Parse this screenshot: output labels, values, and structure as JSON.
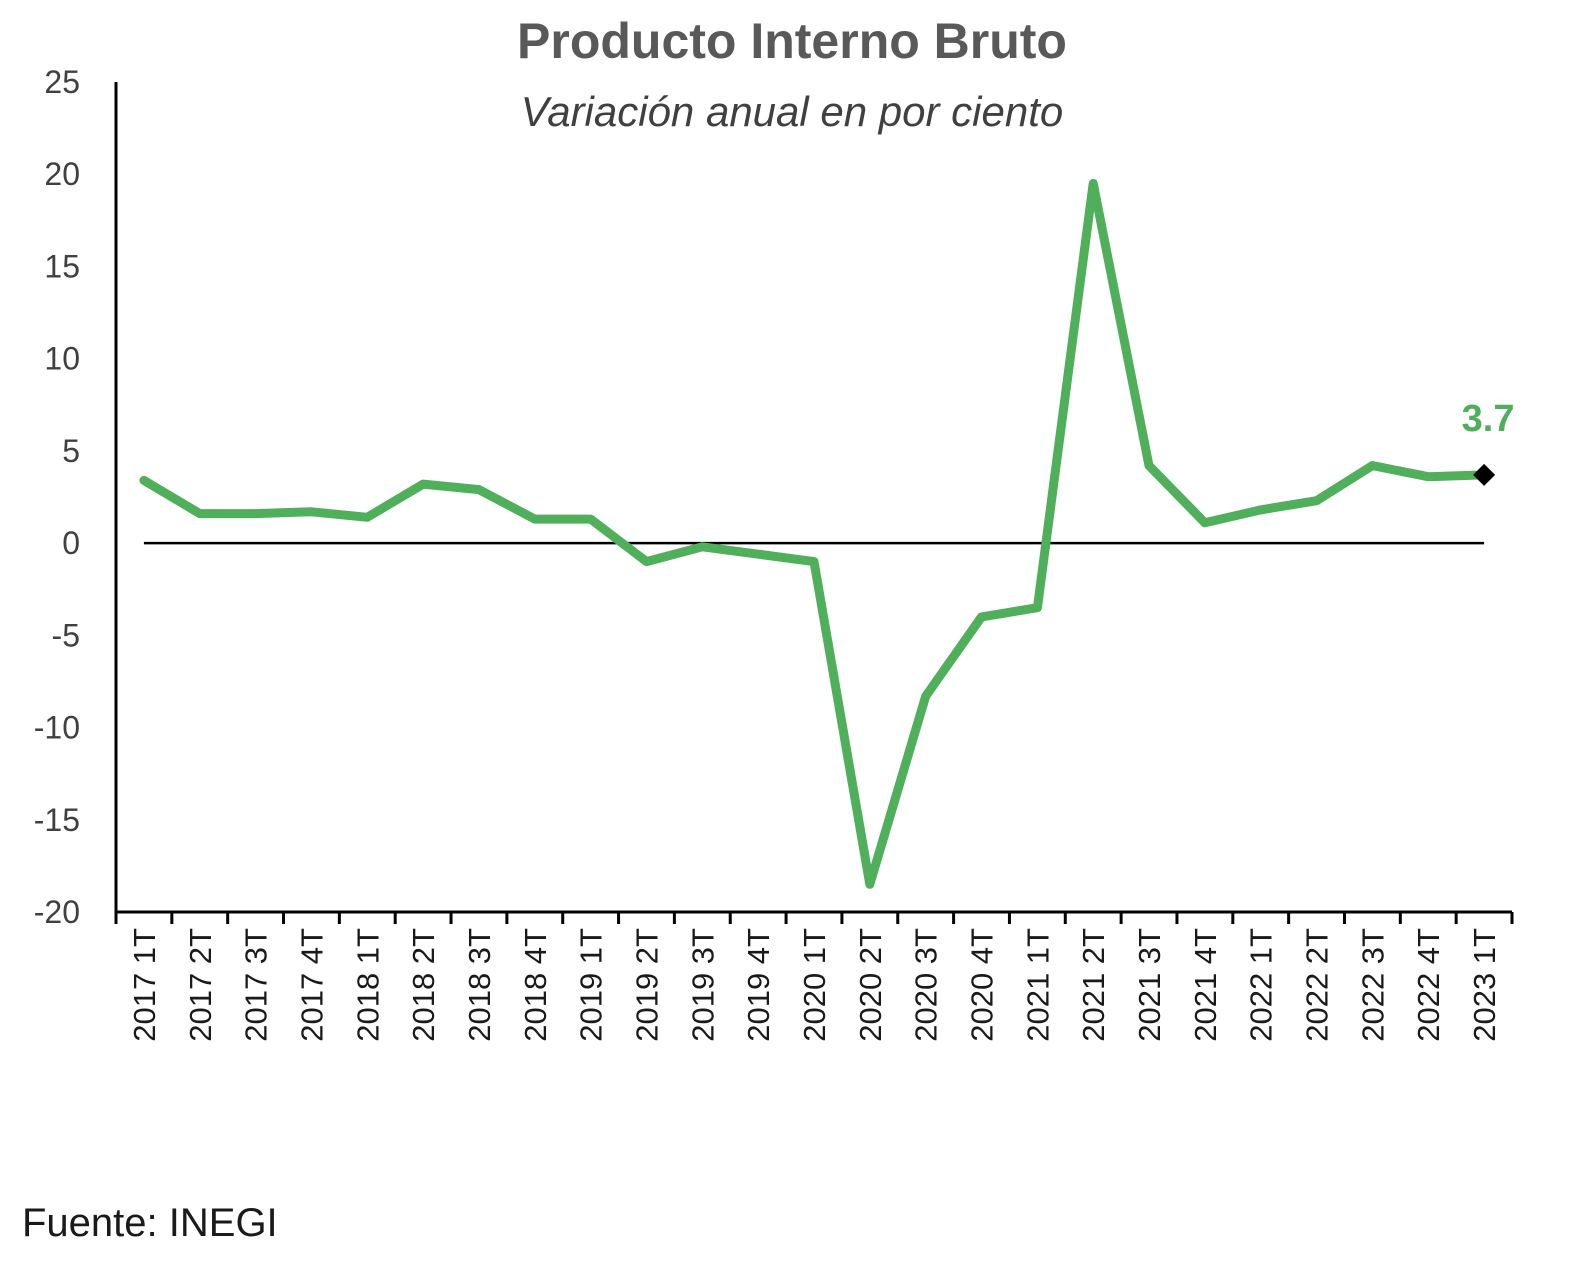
{
  "chart_data": {
    "type": "line",
    "title": "Producto Interno Bruto",
    "subtitle": "Variación anual en por ciento",
    "xlabel": "",
    "ylabel": "",
    "ylim": [
      -20,
      25
    ],
    "yticks": [
      "25",
      "20",
      "15",
      "10",
      "5",
      "0",
      "-5",
      "-10",
      "-15",
      "-20"
    ],
    "categories": [
      "2017 1T",
      "2017 2T",
      "2017 3T",
      "2017 4T",
      "2018 1T",
      "2018 2T",
      "2018 3T",
      "2018 4T",
      "2019 1T",
      "2019 2T",
      "2019 3T",
      "2019 4T",
      "2020 1T",
      "2020 2T",
      "2020 3T",
      "2020 4T",
      "2021 1T",
      "2021 2T",
      "2021 3T",
      "2021 4T",
      "2022 1T",
      "2022 2T",
      "2022 3T",
      "2022 4T",
      "2023 1T"
    ],
    "series": [
      {
        "values": [
          3.4,
          1.6,
          1.6,
          1.7,
          1.4,
          3.2,
          2.9,
          1.3,
          1.3,
          -1.0,
          -0.2,
          -0.6,
          -1.0,
          -18.5,
          -8.3,
          -4.0,
          -3.5,
          19.5,
          4.2,
          1.1,
          1.8,
          2.3,
          4.2,
          3.6,
          3.7
        ],
        "color": "#4faf5a"
      }
    ],
    "annotation": {
      "label": "3.7",
      "category": "2023 1T",
      "value": 3.7,
      "color": "#4faf5a",
      "marker_color": "#000000"
    },
    "zero_line": true,
    "grid": false,
    "legend": "none",
    "source": "Fuente: INEGI"
  }
}
